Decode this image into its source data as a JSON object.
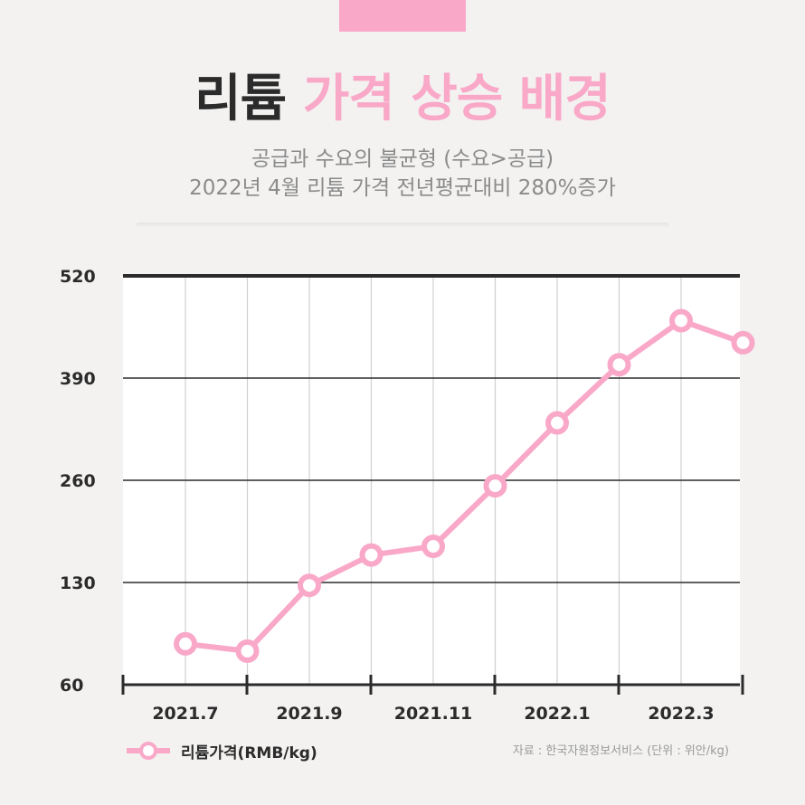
{
  "header": {
    "title_dark": "리튬",
    "title_accent": "가격 상승 배경",
    "subtitle_line1": "공급과 수요의 불균형 (수요>공급)",
    "subtitle_line2": "2022년 4월 리튬 가격 전년평균대비 280%증가"
  },
  "colors": {
    "accent": "#f9a8c8",
    "title_dark": "#2b2b2b",
    "subtitle": "#8b8b8b",
    "background": "#f3f2f1"
  },
  "chart_data": {
    "type": "line",
    "y_ticks": [
      520,
      390,
      260,
      130,
      60
    ],
    "x_tick_labels": [
      "2021.7",
      "2021.9",
      "2021.11",
      "2022.1",
      "2022.3"
    ],
    "series": [
      {
        "name": "리튬가격(RMB/kg)",
        "values": [
          52,
          83,
          128,
          165,
          176,
          253,
          333,
          407,
          463,
          435
        ]
      }
    ],
    "grid": true,
    "legend_position": "bottom-left"
  },
  "legend": {
    "label": "리튬가격(RMB/kg)"
  },
  "source": {
    "text": "자료 : 한국자원정보서비스 (단위 : 위안/kg)"
  }
}
